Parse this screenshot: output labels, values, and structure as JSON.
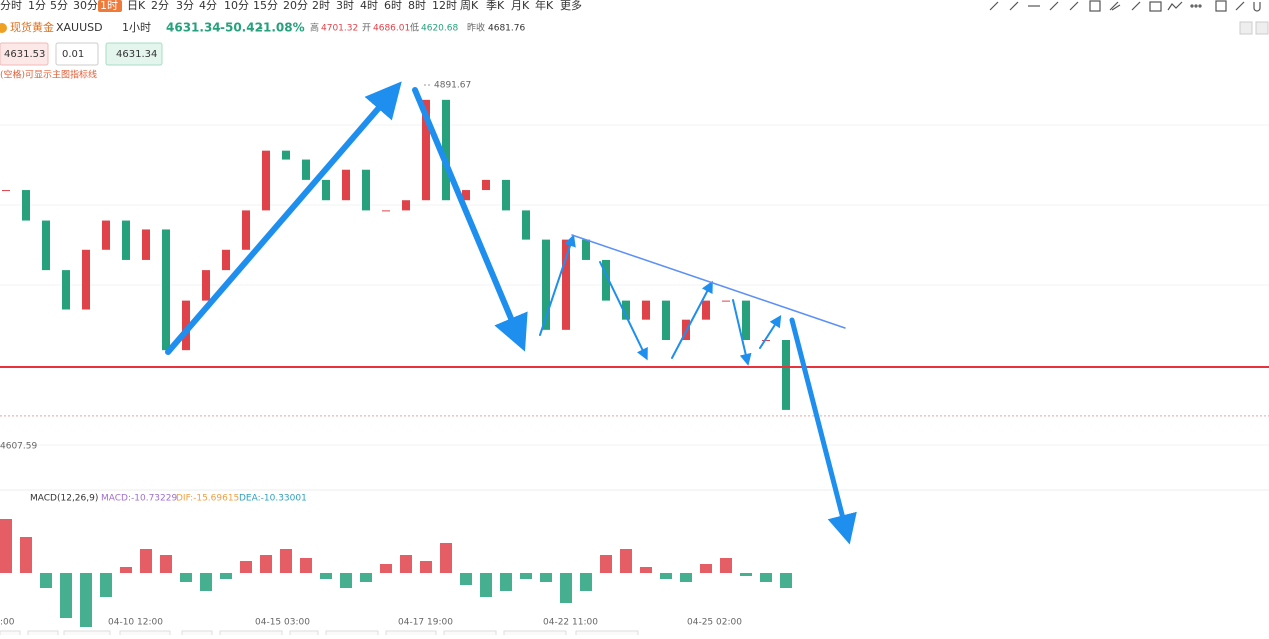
{
  "toolbar": {
    "periods": [
      "分时",
      "1分",
      "5分",
      "30分",
      "1时",
      "日K",
      "2分",
      "3分",
      "4分",
      "10分",
      "15分",
      "20分",
      "2时",
      "3时",
      "4时",
      "6时",
      "8时",
      "12时",
      "周K",
      "季K",
      "月K",
      "年K",
      "更多"
    ],
    "active": "1时"
  },
  "header": {
    "name": "现货黄金",
    "symbol": "XAUUSD",
    "period": "1小时",
    "price": 4631.34,
    "change": -50.42,
    "change_pct": "-1.08%",
    "high_label": "高",
    "high": 4701.32,
    "open_label": "开",
    "open": 4686.01,
    "low_label": "低",
    "low": 4620.68,
    "prev_close_label": "昨收",
    "prev_close": 4681.76
  },
  "order": {
    "sell": 4631.53,
    "lots": 0.01,
    "buy": 4631.34
  },
  "hint": "(空格)可显示主图指标线",
  "chart_data": {
    "type": "candlestick",
    "closes": [
      4809,
      4785,
      4746,
      4715,
      4762,
      4785,
      4754,
      4778,
      4683,
      4722,
      4746,
      4762,
      4793,
      4840,
      4833,
      4817,
      4801,
      4825,
      4793,
      4793,
      4801,
      4880,
      4801,
      4809,
      4817,
      4793,
      4770,
      4699,
      4770,
      4754,
      4722,
      4707,
      4722,
      4691,
      4707,
      4722,
      4722,
      4691,
      4691,
      4636
    ],
    "price_high": 4891.67,
    "price_low": 4607.59,
    "support_level": 4669.8,
    "up_color": "#e0424a",
    "down_color": "#26a17b",
    "x_labels": [
      ":00",
      "04-10 12:00",
      "04-15 03:00",
      "04-17 19:00",
      "04-22 11:00",
      "04-25 02:00"
    ],
    "macd": {
      "title": "MACD(12,26,9)",
      "macd_label": "MACD:-10.73229",
      "dif_label": "DIF:-15.69615",
      "dea_label": "DEA:-10.33001",
      "histogram": [
        18,
        12,
        -5,
        -15,
        -18,
        -8,
        2,
        8,
        6,
        -3,
        -6,
        -2,
        4,
        6,
        8,
        5,
        -2,
        -5,
        -3,
        3,
        6,
        4,
        10,
        -4,
        -8,
        -6,
        -2,
        -3,
        -10,
        -6,
        6,
        8,
        2,
        -2,
        -3,
        3,
        5,
        -1,
        -3,
        -5
      ]
    }
  }
}
